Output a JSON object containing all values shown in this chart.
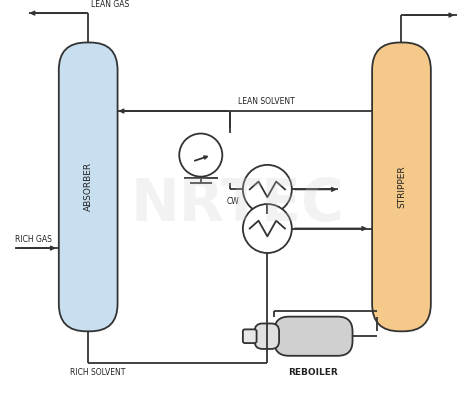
{
  "background_color": "#ffffff",
  "absorber_color": "#c8dff0",
  "stripper_color": "#f5c98a",
  "reboiler_color": "#d0d0d0",
  "edge_col": "#333333",
  "lw": 1.3,
  "font_size": 5.5,
  "labels": {
    "lean_gas": "LEAN GAS",
    "rich_gas": "RICH GAS",
    "lean_solvent": "LEAN SOLVENT",
    "rich_solvent": "RICH SOLVENT",
    "absorber": "ABSORBER",
    "stripper": "STRIPPER",
    "reboiler": "REBOILER",
    "cw": "CW",
    "watermark": "NRTEC"
  }
}
